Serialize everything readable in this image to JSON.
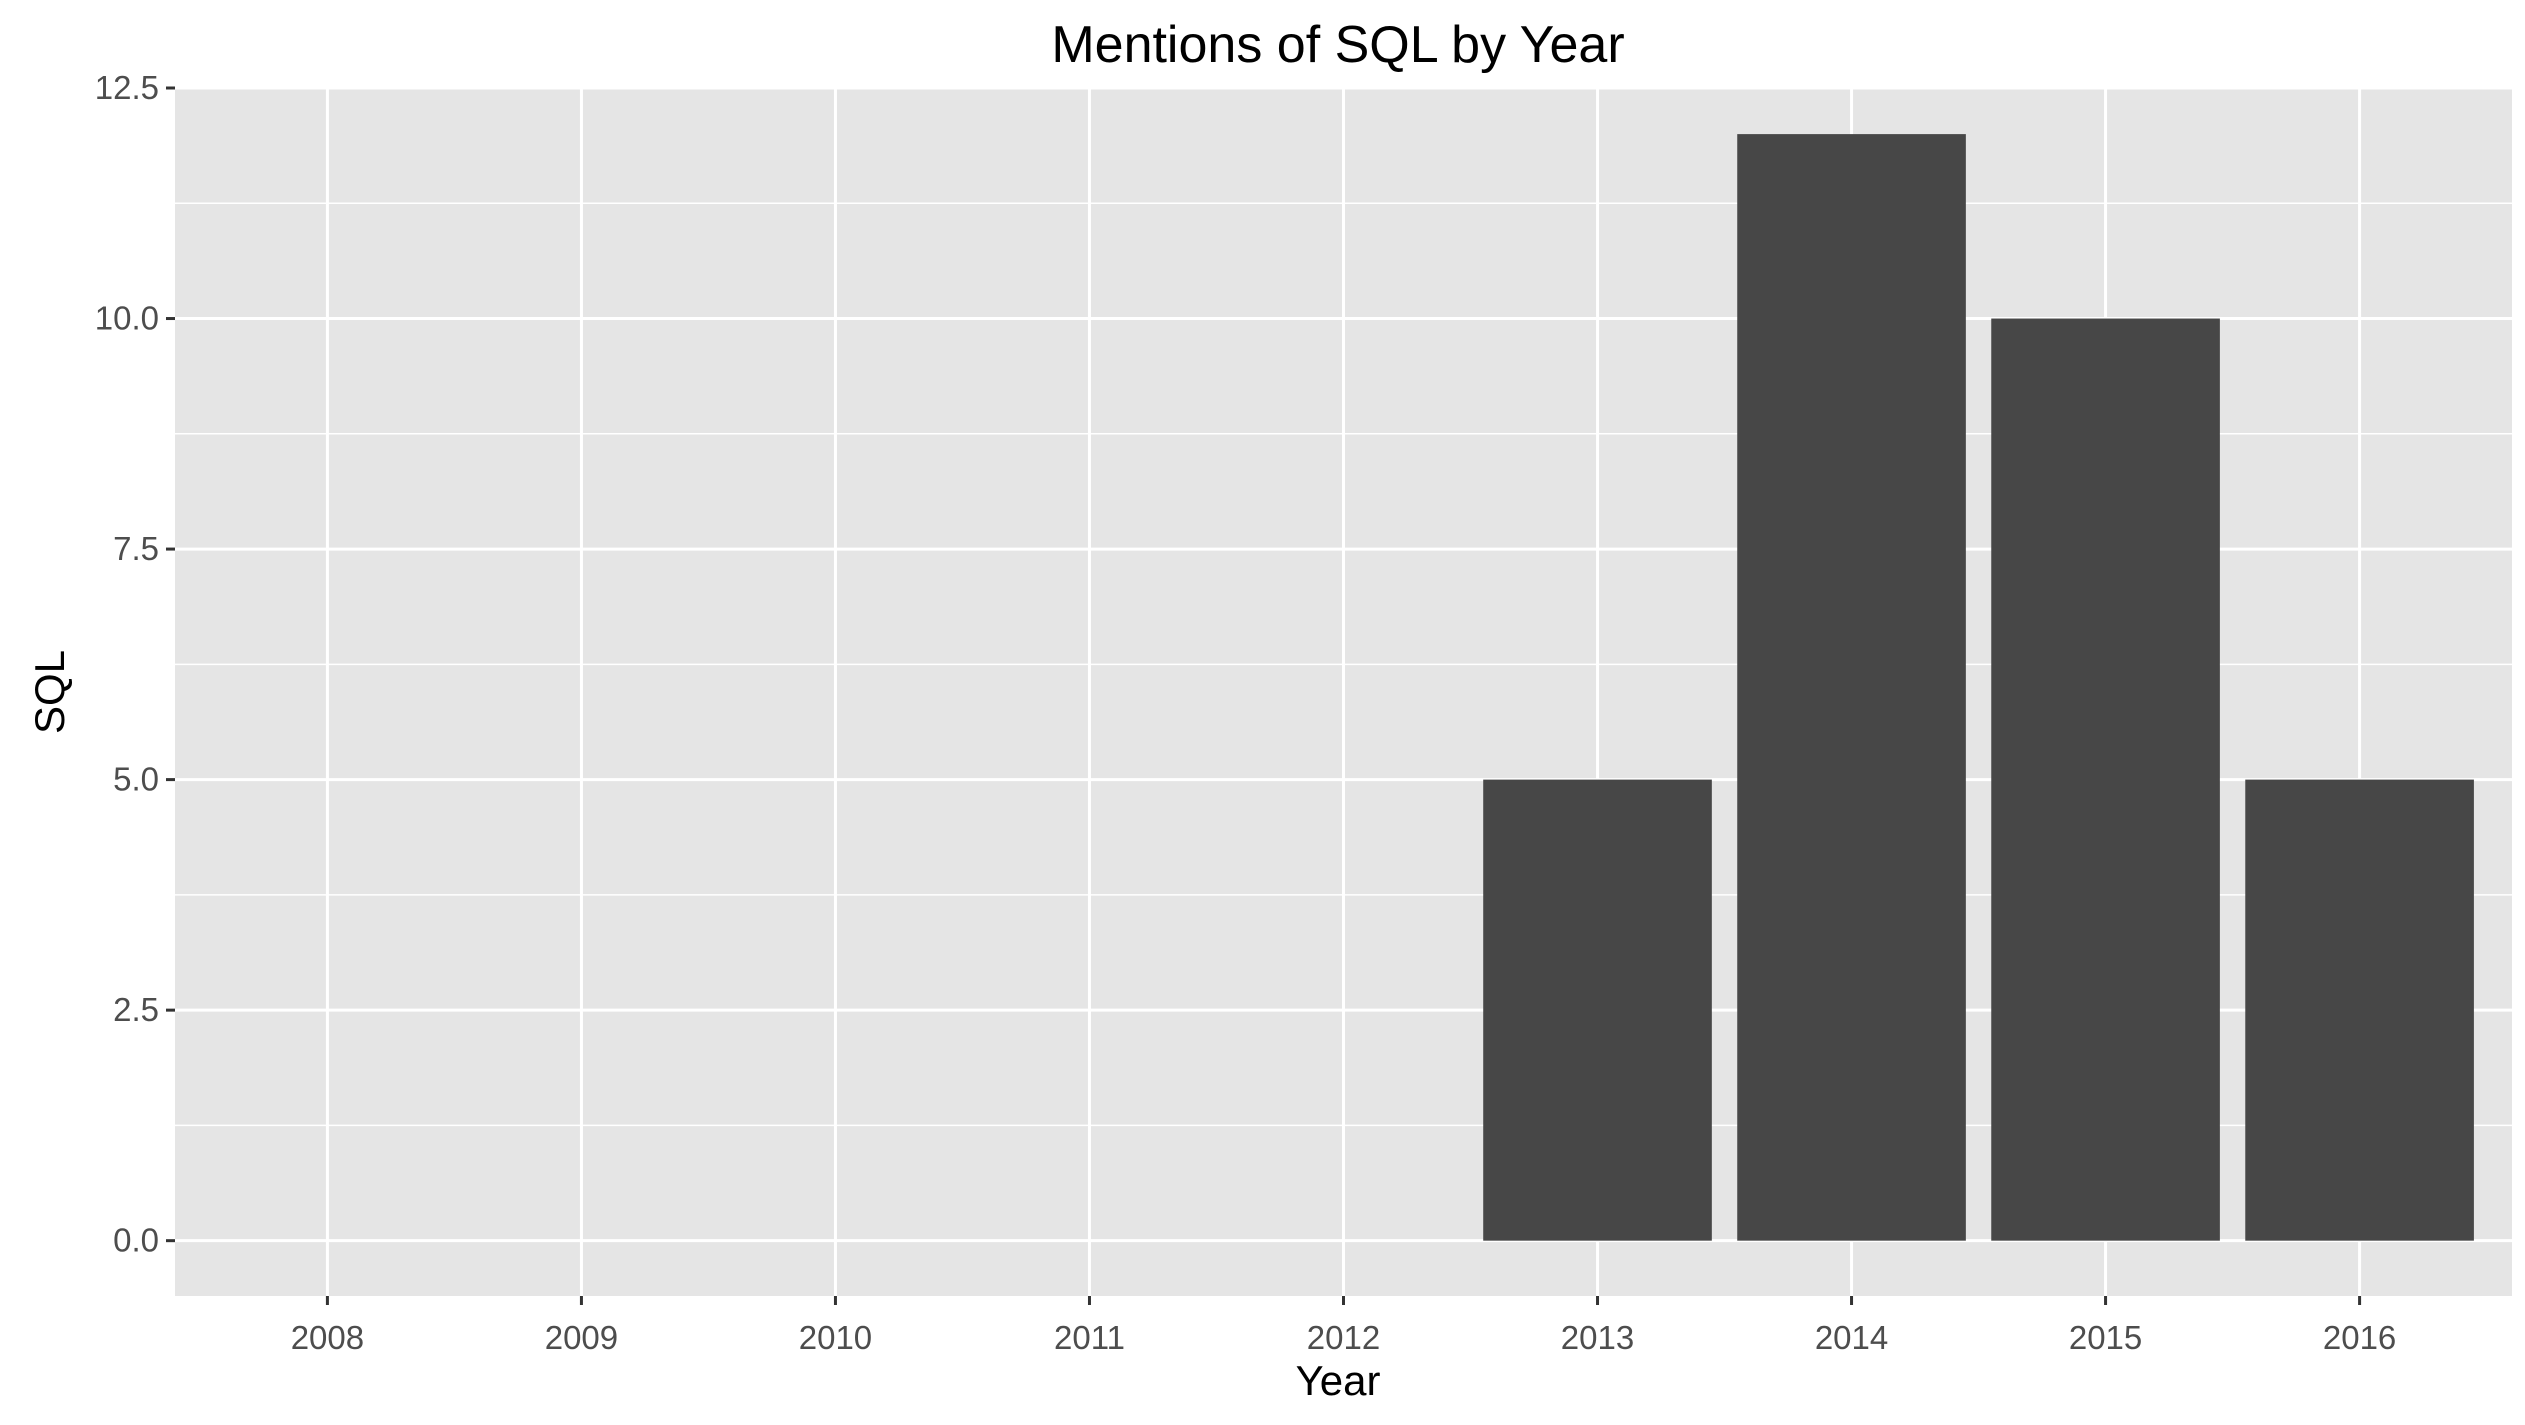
{
  "chart_data": {
    "type": "bar",
    "title": "Mentions of SQL by Year",
    "xlabel": "Year",
    "ylabel": "SQL",
    "categories": [
      "2008",
      "2009",
      "2010",
      "2011",
      "2012",
      "2013",
      "2014",
      "2015",
      "2016"
    ],
    "values": [
      0,
      0,
      0,
      0,
      0,
      5,
      12,
      10,
      5
    ],
    "ylim": [
      -0.6,
      12.5
    ],
    "yticks": [
      "0.0",
      "2.5",
      "5.0",
      "7.5",
      "10.0",
      "12.5"
    ],
    "grid": true,
    "legend": "none",
    "colors": {
      "panel": "#e5e5e5",
      "grid": "#ffffff",
      "bar": "#474747",
      "tick_text": "#4d4d4d",
      "tick_mark": "#333333"
    }
  }
}
